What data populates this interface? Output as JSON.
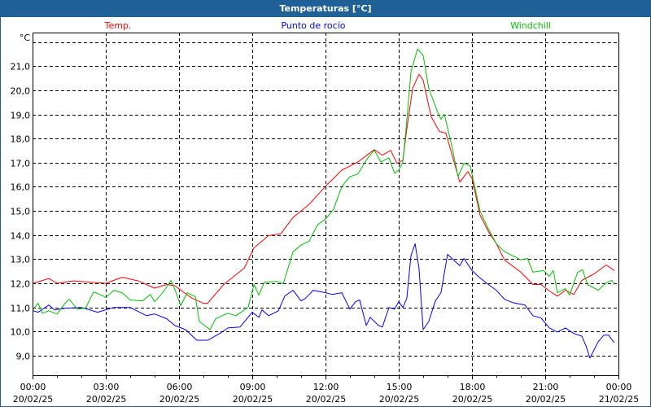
{
  "window": {
    "title": "Temperaturas [°C]"
  },
  "chart_data": {
    "type": "line",
    "title": "Temperaturas [°C]",
    "ylabel": "°C",
    "xlabel": "",
    "ylim": [
      8.19,
      22.39
    ],
    "xlim_hours": [
      0,
      24
    ],
    "grid": true,
    "legend_placement": "top",
    "yticks": [
      {
        "value": 9,
        "label": "9,0"
      },
      {
        "value": 10,
        "label": "10,0"
      },
      {
        "value": 11,
        "label": "11,0"
      },
      {
        "value": 12,
        "label": "12,0"
      },
      {
        "value": 13,
        "label": "13,0"
      },
      {
        "value": 14,
        "label": "14,0"
      },
      {
        "value": 15,
        "label": "15,0"
      },
      {
        "value": 16,
        "label": "16,0"
      },
      {
        "value": 17,
        "label": "17,0"
      },
      {
        "value": 18,
        "label": "18,0"
      },
      {
        "value": 19,
        "label": "19,0"
      },
      {
        "value": 20,
        "label": "20,0"
      },
      {
        "value": 21,
        "label": "21,0"
      },
      {
        "value": 22,
        "label": ""
      }
    ],
    "xticks": [
      {
        "hour": 0,
        "time": "00:00",
        "date": "20/02/25"
      },
      {
        "hour": 3,
        "time": "03:00",
        "date": "20/02/25"
      },
      {
        "hour": 6,
        "time": "06:00",
        "date": "20/02/25"
      },
      {
        "hour": 9,
        "time": "09:00",
        "date": "20/02/25"
      },
      {
        "hour": 12,
        "time": "12:00",
        "date": "20/02/25"
      },
      {
        "hour": 15,
        "time": "15:00",
        "date": "20/02/25"
      },
      {
        "hour": 18,
        "time": "18:00",
        "date": "20/02/25"
      },
      {
        "hour": 21,
        "time": "21:00",
        "date": "20/02/25"
      },
      {
        "hour": 24,
        "time": "00:00",
        "date": "21/02/25"
      }
    ],
    "series": [
      {
        "name": "Temp.",
        "color": "#ff0000",
        "legend_x_hour": 3.5,
        "points": [
          [
            0.03,
            12.0
          ],
          [
            0.67,
            12.2
          ],
          [
            1.0,
            12.0
          ],
          [
            1.67,
            12.1
          ],
          [
            3.0,
            12.0
          ],
          [
            3.67,
            12.25
          ],
          [
            4.33,
            12.1
          ],
          [
            5.0,
            11.8
          ],
          [
            5.5,
            11.95
          ],
          [
            5.83,
            11.9
          ],
          [
            6.5,
            11.4
          ],
          [
            7.0,
            11.17
          ],
          [
            7.17,
            11.17
          ],
          [
            7.83,
            11.95
          ],
          [
            8.67,
            12.63
          ],
          [
            9.07,
            13.47
          ],
          [
            9.67,
            13.98
          ],
          [
            10.17,
            14.05
          ],
          [
            10.67,
            14.73
          ],
          [
            11.33,
            15.27
          ],
          [
            12.0,
            16.02
          ],
          [
            12.67,
            16.69
          ],
          [
            13.33,
            17.03
          ],
          [
            14.0,
            17.54
          ],
          [
            14.33,
            17.31
          ],
          [
            14.67,
            17.51
          ],
          [
            14.93,
            16.97
          ],
          [
            15.17,
            17.1
          ],
          [
            15.33,
            18.39
          ],
          [
            15.57,
            20.08
          ],
          [
            15.83,
            20.66
          ],
          [
            16.0,
            20.42
          ],
          [
            16.33,
            18.9
          ],
          [
            16.67,
            18.29
          ],
          [
            16.93,
            18.22
          ],
          [
            17.17,
            17.37
          ],
          [
            17.5,
            16.19
          ],
          [
            17.83,
            16.63
          ],
          [
            18.0,
            16.36
          ],
          [
            18.33,
            14.83
          ],
          [
            18.67,
            14.15
          ],
          [
            19.0,
            13.64
          ],
          [
            19.33,
            12.97
          ],
          [
            20.0,
            12.46
          ],
          [
            20.5,
            11.95
          ],
          [
            20.83,
            11.95
          ],
          [
            21.17,
            11.68
          ],
          [
            21.5,
            11.47
          ],
          [
            21.83,
            11.71
          ],
          [
            22.17,
            11.54
          ],
          [
            22.5,
            12.12
          ],
          [
            23.0,
            12.39
          ],
          [
            23.5,
            12.76
          ],
          [
            23.83,
            12.53
          ]
        ]
      },
      {
        "name": "Punto de rocío",
        "color": "#0000ff",
        "legend_x_hour": 11.5,
        "points": [
          [
            0.03,
            10.86
          ],
          [
            0.23,
            10.8
          ],
          [
            0.67,
            11.1
          ],
          [
            0.9,
            10.9
          ],
          [
            1.33,
            10.97
          ],
          [
            2.0,
            11.0
          ],
          [
            2.67,
            10.8
          ],
          [
            3.33,
            11.0
          ],
          [
            4.0,
            11.0
          ],
          [
            4.33,
            10.83
          ],
          [
            4.67,
            10.66
          ],
          [
            5.0,
            10.73
          ],
          [
            5.5,
            10.53
          ],
          [
            5.83,
            10.25
          ],
          [
            6.27,
            10.08
          ],
          [
            6.73,
            9.64
          ],
          [
            7.17,
            9.64
          ],
          [
            7.67,
            9.92
          ],
          [
            8.0,
            10.15
          ],
          [
            8.5,
            10.19
          ],
          [
            9.0,
            10.8
          ],
          [
            9.27,
            10.59
          ],
          [
            9.4,
            10.9
          ],
          [
            9.67,
            10.66
          ],
          [
            10.07,
            10.86
          ],
          [
            10.33,
            11.47
          ],
          [
            10.67,
            11.71
          ],
          [
            11.0,
            11.27
          ],
          [
            11.17,
            11.37
          ],
          [
            11.5,
            11.71
          ],
          [
            12.0,
            11.61
          ],
          [
            12.27,
            11.54
          ],
          [
            12.67,
            11.61
          ],
          [
            13.0,
            10.93
          ],
          [
            13.23,
            11.24
          ],
          [
            13.4,
            11.31
          ],
          [
            13.67,
            10.25
          ],
          [
            13.83,
            10.59
          ],
          [
            14.17,
            10.25
          ],
          [
            14.33,
            10.19
          ],
          [
            14.6,
            11.0
          ],
          [
            14.83,
            10.93
          ],
          [
            15.0,
            11.24
          ],
          [
            15.17,
            11.0
          ],
          [
            15.33,
            11.37
          ],
          [
            15.5,
            13.14
          ],
          [
            15.67,
            13.64
          ],
          [
            15.83,
            12.63
          ],
          [
            16.0,
            10.08
          ],
          [
            16.23,
            10.42
          ],
          [
            16.5,
            11.27
          ],
          [
            16.73,
            11.61
          ],
          [
            17.0,
            13.2
          ],
          [
            17.5,
            12.73
          ],
          [
            17.67,
            13.03
          ],
          [
            18.0,
            12.53
          ],
          [
            18.33,
            12.22
          ],
          [
            18.67,
            11.95
          ],
          [
            19.0,
            11.71
          ],
          [
            19.33,
            11.34
          ],
          [
            19.67,
            11.2
          ],
          [
            20.17,
            11.1
          ],
          [
            20.5,
            10.66
          ],
          [
            20.83,
            10.56
          ],
          [
            21.17,
            10.15
          ],
          [
            21.5,
            9.98
          ],
          [
            21.83,
            10.15
          ],
          [
            22.17,
            9.92
          ],
          [
            22.5,
            9.81
          ],
          [
            22.67,
            9.41
          ],
          [
            22.83,
            8.9
          ],
          [
            23.17,
            9.58
          ],
          [
            23.4,
            9.85
          ],
          [
            23.6,
            9.85
          ],
          [
            23.83,
            9.54
          ]
        ]
      },
      {
        "name": "Windchill",
        "color": "#00c000",
        "legend_x_hour": 20.4,
        "points": [
          [
            0.03,
            10.93
          ],
          [
            0.23,
            11.17
          ],
          [
            0.4,
            10.76
          ],
          [
            0.67,
            10.86
          ],
          [
            1.0,
            10.73
          ],
          [
            1.33,
            11.17
          ],
          [
            1.5,
            11.34
          ],
          [
            1.83,
            10.93
          ],
          [
            2.17,
            10.97
          ],
          [
            2.5,
            11.64
          ],
          [
            2.83,
            11.51
          ],
          [
            3.0,
            11.41
          ],
          [
            3.33,
            11.71
          ],
          [
            3.67,
            11.61
          ],
          [
            4.0,
            11.31
          ],
          [
            4.5,
            11.27
          ],
          [
            4.83,
            11.54
          ],
          [
            5.0,
            11.24
          ],
          [
            5.33,
            11.61
          ],
          [
            5.67,
            12.12
          ],
          [
            5.83,
            11.75
          ],
          [
            6.07,
            11.07
          ],
          [
            6.33,
            11.61
          ],
          [
            6.67,
            11.44
          ],
          [
            6.83,
            10.42
          ],
          [
            7.27,
            10.08
          ],
          [
            7.5,
            10.53
          ],
          [
            8.0,
            10.76
          ],
          [
            8.33,
            10.66
          ],
          [
            8.83,
            11.0
          ],
          [
            9.07,
            11.95
          ],
          [
            9.27,
            11.51
          ],
          [
            9.5,
            12.05
          ],
          [
            10.0,
            12.08
          ],
          [
            10.27,
            11.98
          ],
          [
            10.67,
            13.31
          ],
          [
            11.0,
            13.58
          ],
          [
            11.33,
            13.75
          ],
          [
            11.67,
            14.42
          ],
          [
            12.0,
            14.66
          ],
          [
            12.33,
            15.07
          ],
          [
            12.67,
            16.02
          ],
          [
            13.0,
            16.42
          ],
          [
            13.33,
            16.53
          ],
          [
            13.73,
            17.2
          ],
          [
            14.0,
            17.51
          ],
          [
            14.27,
            17.03
          ],
          [
            14.6,
            17.2
          ],
          [
            14.83,
            16.56
          ],
          [
            15.0,
            16.69
          ],
          [
            15.17,
            17.03
          ],
          [
            15.33,
            18.73
          ],
          [
            15.5,
            20.76
          ],
          [
            15.77,
            21.71
          ],
          [
            16.0,
            21.44
          ],
          [
            16.23,
            20.08
          ],
          [
            16.6,
            19.07
          ],
          [
            16.73,
            18.8
          ],
          [
            16.87,
            19.0
          ],
          [
            17.17,
            17.71
          ],
          [
            17.43,
            16.42
          ],
          [
            17.67,
            16.97
          ],
          [
            17.93,
            16.86
          ],
          [
            18.33,
            15.0
          ],
          [
            18.67,
            14.25
          ],
          [
            19.0,
            13.64
          ],
          [
            19.33,
            13.31
          ],
          [
            19.67,
            13.14
          ],
          [
            20.0,
            12.97
          ],
          [
            20.27,
            13.03
          ],
          [
            20.5,
            12.46
          ],
          [
            20.93,
            12.53
          ],
          [
            21.17,
            12.29
          ],
          [
            21.33,
            12.53
          ],
          [
            21.5,
            11.61
          ],
          [
            21.83,
            11.78
          ],
          [
            22.0,
            11.51
          ],
          [
            22.33,
            12.46
          ],
          [
            22.53,
            12.56
          ],
          [
            22.73,
            11.95
          ],
          [
            23.17,
            11.71
          ],
          [
            23.5,
            12.02
          ],
          [
            23.73,
            12.12
          ],
          [
            23.83,
            11.95
          ]
        ]
      }
    ]
  }
}
